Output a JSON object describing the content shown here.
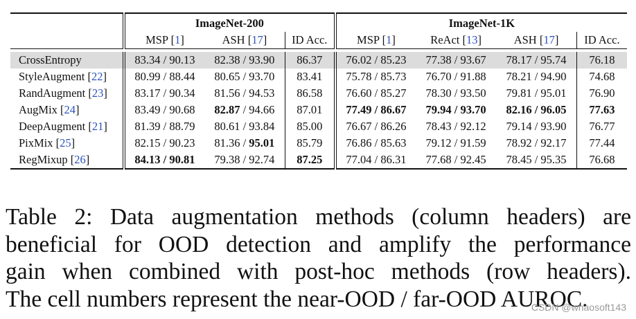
{
  "table": {
    "groups": [
      "ImageNet-200",
      "ImageNet-1K"
    ],
    "columns": [
      {
        "label": "MSP",
        "ref": "1"
      },
      {
        "label": "ASH",
        "ref": "17"
      },
      {
        "label": "ID Acc.",
        "ref": ""
      },
      {
        "label": "MSP",
        "ref": "1"
      },
      {
        "label": "ReAct",
        "ref": "13"
      },
      {
        "label": "ASH",
        "ref": "17"
      },
      {
        "label": "ID Acc.",
        "ref": ""
      }
    ],
    "rows": [
      {
        "method": "CrossEntropy",
        "ref": "",
        "highlight": true,
        "cells": [
          "83.34 / 90.13",
          "82.38 / 93.90",
          "86.37",
          "76.02 / 85.23",
          "77.38 / 93.67",
          "78.17 / 95.74",
          "76.18"
        ]
      },
      {
        "method": "StyleAugment",
        "ref": "22",
        "cells": [
          "80.99 / 88.44",
          "80.65 / 93.70",
          "83.41",
          "75.78 / 85.73",
          "76.70 / 91.88",
          "78.21 / 94.90",
          "74.68"
        ]
      },
      {
        "method": "RandAugment",
        "ref": "23",
        "cells": [
          "83.17 / 90.34",
          "81.56 / 94.53",
          "86.58",
          "76.60 / 85.27",
          "78.30 / 93.50",
          "79.81 / 95.01",
          "76.90"
        ]
      },
      {
        "method": "AugMix",
        "ref": "24",
        "cells": [
          "83.49 / 90.68",
          "82.87 / 94.66",
          "87.01",
          "77.49 / 86.67",
          "79.94 / 93.70",
          "82.16 / 96.05",
          "77.63"
        ]
      },
      {
        "method": "DeepAugment",
        "ref": "21",
        "cells": [
          "81.39 / 88.79",
          "80.61 / 93.84",
          "85.00",
          "76.67 / 86.26",
          "78.43 / 92.12",
          "79.14 / 93.90",
          "76.77"
        ]
      },
      {
        "method": "PixMix",
        "ref": "25",
        "cells": [
          "82.15 / 90.23",
          "81.36 / 95.01",
          "85.79",
          "76.86 / 85.63",
          "79.12 / 91.59",
          "78.92 / 92.17",
          "77.44"
        ]
      },
      {
        "method": "RegMixup",
        "ref": "26",
        "cells": [
          "84.13 / 90.81",
          "79.38 / 92.74",
          "87.25",
          "77.04 / 86.31",
          "77.68 / 92.45",
          "78.45 / 95.35",
          "76.68"
        ]
      }
    ]
  },
  "caption": {
    "lines": [
      "Table 2: Data augmentation methods (column headers) are",
      "beneficial for OOD detection and amplify the performance",
      "gain when combined with post-hoc methods (row headers).",
      "The cell numbers represent the near-OOD / far-OOD AUROC."
    ]
  },
  "watermark": "CSDN @whaosoft143"
}
